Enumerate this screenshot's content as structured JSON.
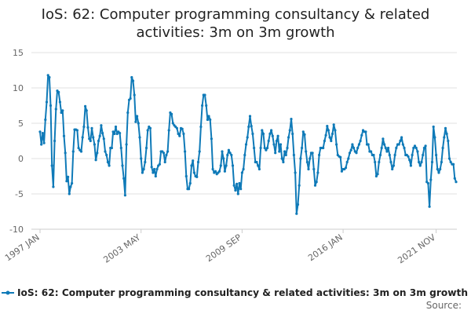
{
  "chart_data": {
    "type": "line",
    "title": "IoS: 62: Computer programming consultancy & related activities: 3m on 3m growth",
    "title_lines": [
      "IoS: 62: Computer programming consultancy & related",
      "activities: 3m on 3m growth"
    ],
    "xlabel": "",
    "ylabel": "",
    "ylim": [
      -10,
      15
    ],
    "y_ticks": [
      15,
      10,
      5,
      0,
      -5,
      -10
    ],
    "x_ticks": [
      "1997 JAN",
      "2003 MAY",
      "2009 SEP",
      "2016 JAN",
      "2021 NOV"
    ],
    "grid": true,
    "legend_position": "bottom",
    "series": [
      {
        "name": "IoS: 62: Computer programming consultancy & related activities: 3m on 3m growth",
        "color": "#0f7ab8",
        "start": "1997 JAN",
        "values": [
          3.8,
          2.0,
          3.6,
          2.2,
          5.5,
          8.0,
          11.8,
          11.5,
          7.5,
          -1.0,
          -4.0,
          2.5,
          7.0,
          9.6,
          9.4,
          8.0,
          6.5,
          6.8,
          3.2,
          0.8,
          -3.2,
          -2.6,
          -5.0,
          -4.0,
          -3.5,
          1.0,
          4.1,
          4.1,
          4.0,
          1.5,
          1.2,
          1.0,
          3.0,
          4.5,
          7.4,
          6.8,
          4.4,
          2.8,
          2.5,
          4.3,
          3.0,
          2.0,
          -0.2,
          0.8,
          2.5,
          3.2,
          4.7,
          3.6,
          2.8,
          1.0,
          0.5,
          -0.5,
          -1.0,
          1.5,
          1.5,
          3.8,
          3.5,
          4.5,
          3.5,
          3.8,
          3.6,
          1.5,
          -1.0,
          -2.8,
          -5.2,
          2.0,
          6.5,
          8.3,
          8.5,
          11.5,
          11.0,
          9.0,
          5.2,
          6.0,
          5.0,
          3.0,
          0.0,
          -2.0,
          -1.5,
          -0.5,
          1.5,
          4.0,
          4.5,
          4.3,
          -1.2,
          -2.0,
          -1.5,
          -2.5,
          -1.5,
          -1.0,
          -0.8,
          1.0,
          1.0,
          0.8,
          -0.5,
          0.5,
          1.0,
          4.0,
          6.5,
          6.3,
          5.0,
          4.7,
          4.5,
          4.3,
          3.5,
          3.2,
          4.3,
          4.2,
          3.5,
          1.0,
          -2.5,
          -4.3,
          -4.3,
          -3.5,
          -1.0,
          -0.3,
          -2.0,
          -2.5,
          -2.6,
          -0.5,
          1.0,
          4.5,
          7.5,
          9.0,
          9.0,
          7.5,
          5.5,
          6.0,
          5.5,
          2.8,
          -1.5,
          -2.0,
          -1.8,
          -2.2,
          -2.0,
          -1.8,
          -1.0,
          1.0,
          0.0,
          -1.8,
          -1.0,
          0.5,
          1.2,
          0.8,
          0.5,
          -1.0,
          -3.8,
          -4.5,
          -3.6,
          -5.0,
          -3.5,
          -4.3,
          -2.0,
          -1.5,
          0.5,
          2.0,
          3.0,
          4.5,
          6.0,
          4.6,
          3.5,
          1.5,
          -0.5,
          -0.5,
          -1.0,
          -1.5,
          1.5,
          4.0,
          3.5,
          1.5,
          1.2,
          1.5,
          2.5,
          3.5,
          4.0,
          3.2,
          2.0,
          0.8,
          2.5,
          3.2,
          1.0,
          2.0,
          0.0,
          -0.5,
          1.0,
          0.5,
          1.5,
          3.0,
          4.0,
          5.6,
          3.5,
          0.5,
          -2.0,
          -7.8,
          -6.5,
          -3.8,
          0.0,
          1.5,
          3.8,
          3.4,
          1.0,
          -0.5,
          -1.5,
          0.0,
          0.8,
          0.8,
          -1.5,
          -3.8,
          -3.3,
          -2.0,
          0.5,
          1.5,
          1.5,
          1.5,
          2.5,
          3.3,
          4.6,
          4.0,
          3.0,
          2.5,
          3.5,
          4.8,
          4.0,
          2.0,
          0.5,
          0.3,
          0.2,
          -1.8,
          -1.5,
          -1.5,
          -1.3,
          -0.5,
          0.0,
          0.8,
          1.2,
          2.0,
          1.5,
          1.0,
          0.8,
          1.5,
          2.0,
          2.5,
          3.3,
          4.0,
          3.8,
          3.8,
          2.0,
          2.0,
          1.0,
          1.0,
          0.5,
          0.5,
          -0.5,
          -2.5,
          -2.2,
          -0.5,
          0.5,
          1.5,
          2.8,
          2.0,
          1.5,
          1.0,
          1.5,
          0.5,
          -0.5,
          -1.5,
          -1.0,
          0.5,
          1.5,
          2.0,
          2.0,
          2.5,
          3.0,
          2.0,
          1.5,
          0.5,
          0.5,
          0.3,
          -0.2,
          -1.0,
          0.5,
          1.5,
          1.8,
          1.5,
          1.0,
          -0.5,
          -1.0,
          -0.5,
          0.5,
          1.5,
          1.8,
          -3.3,
          -3.5,
          -6.8,
          -3.0,
          -0.5,
          4.5,
          3.0,
          0.5,
          -1.5,
          -2.0,
          -1.5,
          -0.5,
          1.5,
          3.0,
          4.3,
          3.5,
          2.5,
          0.0,
          -0.5,
          -0.8,
          -0.8,
          -2.8,
          -3.3
        ]
      }
    ],
    "legend_label": "IoS: 62: Computer programming consultancy & related activities: 3m on 3m growth",
    "source_label": "Source:"
  }
}
